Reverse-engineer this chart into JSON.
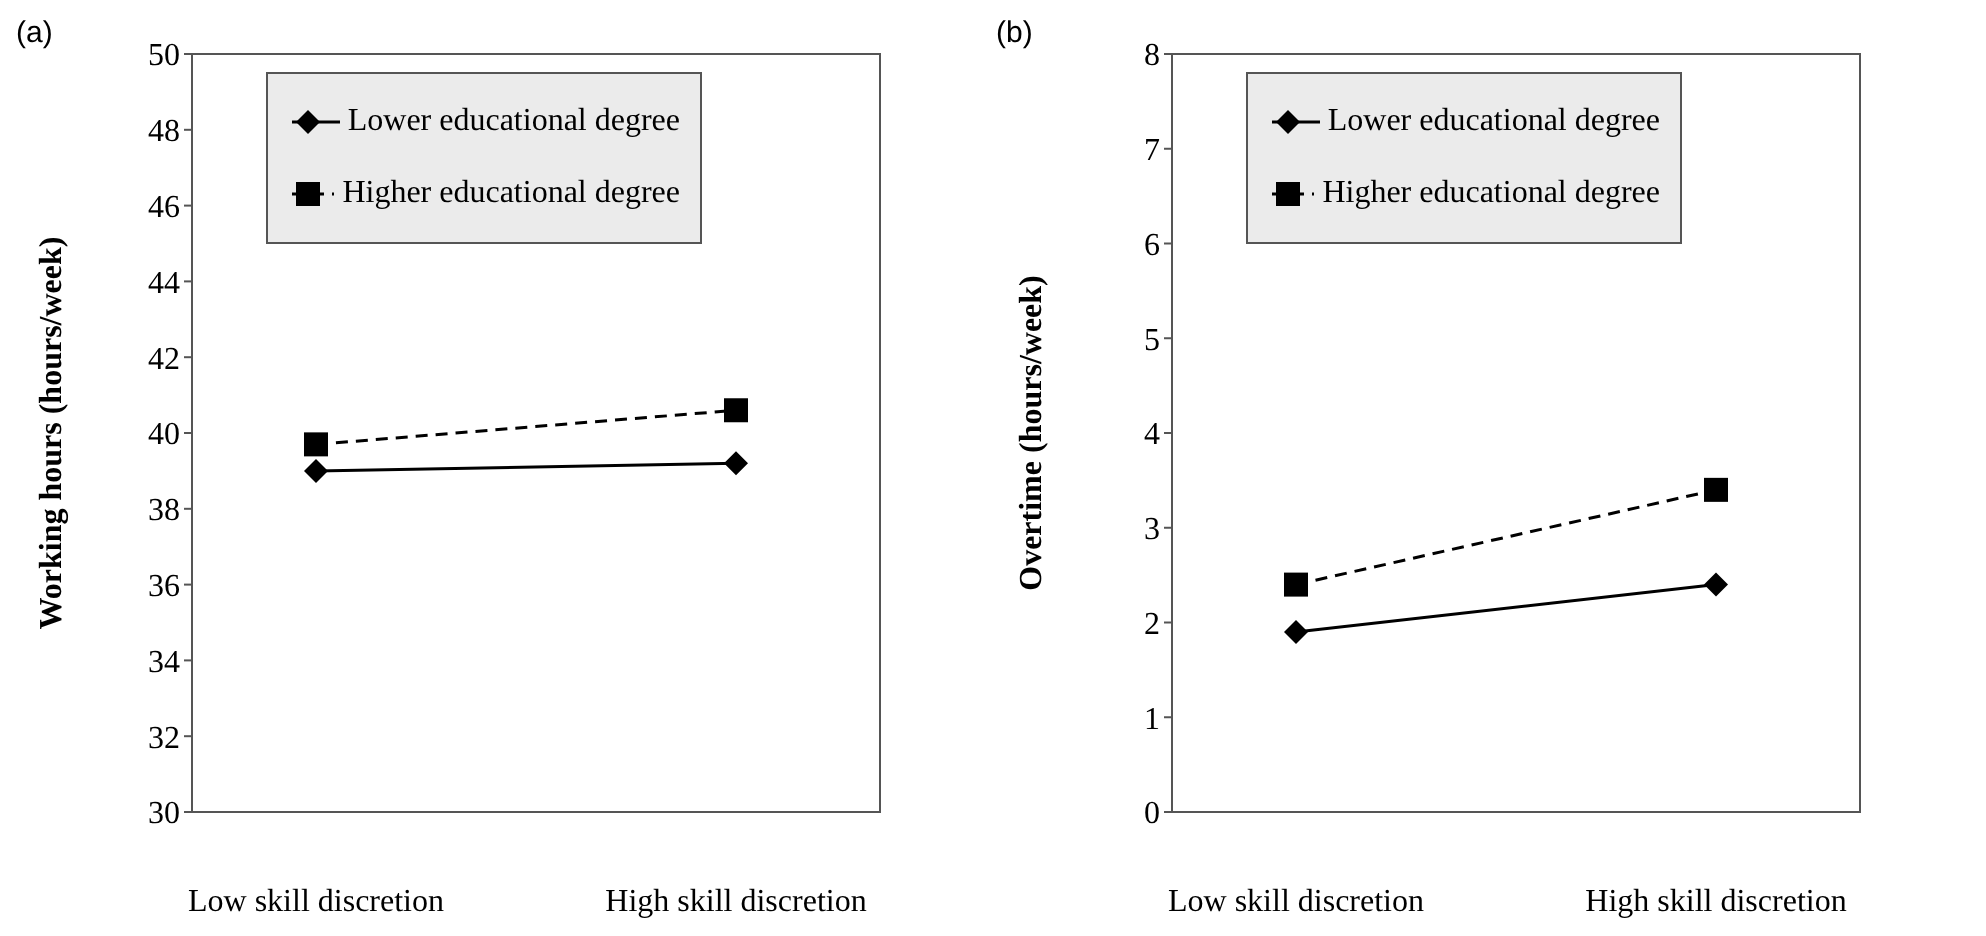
{
  "chart_data": [
    {
      "type": "line",
      "title": "(a)",
      "ylabel": "Working hours (hours/week)",
      "categories": [
        "Low skill discretion",
        "High skill discretion"
      ],
      "series": [
        {
          "name": "Lower educational degree",
          "color": "#000000",
          "values": [
            39.0,
            39.2
          ],
          "marker": "diamond",
          "line_style": "solid"
        },
        {
          "name": "Higher educational degree",
          "color": "#000000",
          "values": [
            39.7,
            40.6
          ],
          "marker": "square",
          "line_style": "dashed"
        }
      ],
      "ylim": [
        30,
        50
      ],
      "yticks": [
        30,
        32,
        34,
        36,
        38,
        40,
        42,
        44,
        46,
        48,
        50
      ],
      "legend": "top",
      "grid": false
    },
    {
      "type": "line",
      "title": "(b)",
      "ylabel": "Overtime (hours/week)",
      "categories": [
        "Low skill discretion",
        "High skill discretion"
      ],
      "series": [
        {
          "name": "Lower educational degree",
          "color": "#000000",
          "values": [
            1.9,
            2.4
          ],
          "marker": "diamond",
          "line_style": "solid"
        },
        {
          "name": "Higher educational degree",
          "color": "#000000",
          "values": [
            2.4,
            3.4
          ],
          "marker": "square",
          "line_style": "dashed"
        }
      ],
      "ylim": [
        0,
        8
      ],
      "yticks": [
        0,
        1,
        2,
        3,
        4,
        5,
        6,
        7,
        8
      ],
      "legend": "top",
      "grid": false
    }
  ]
}
